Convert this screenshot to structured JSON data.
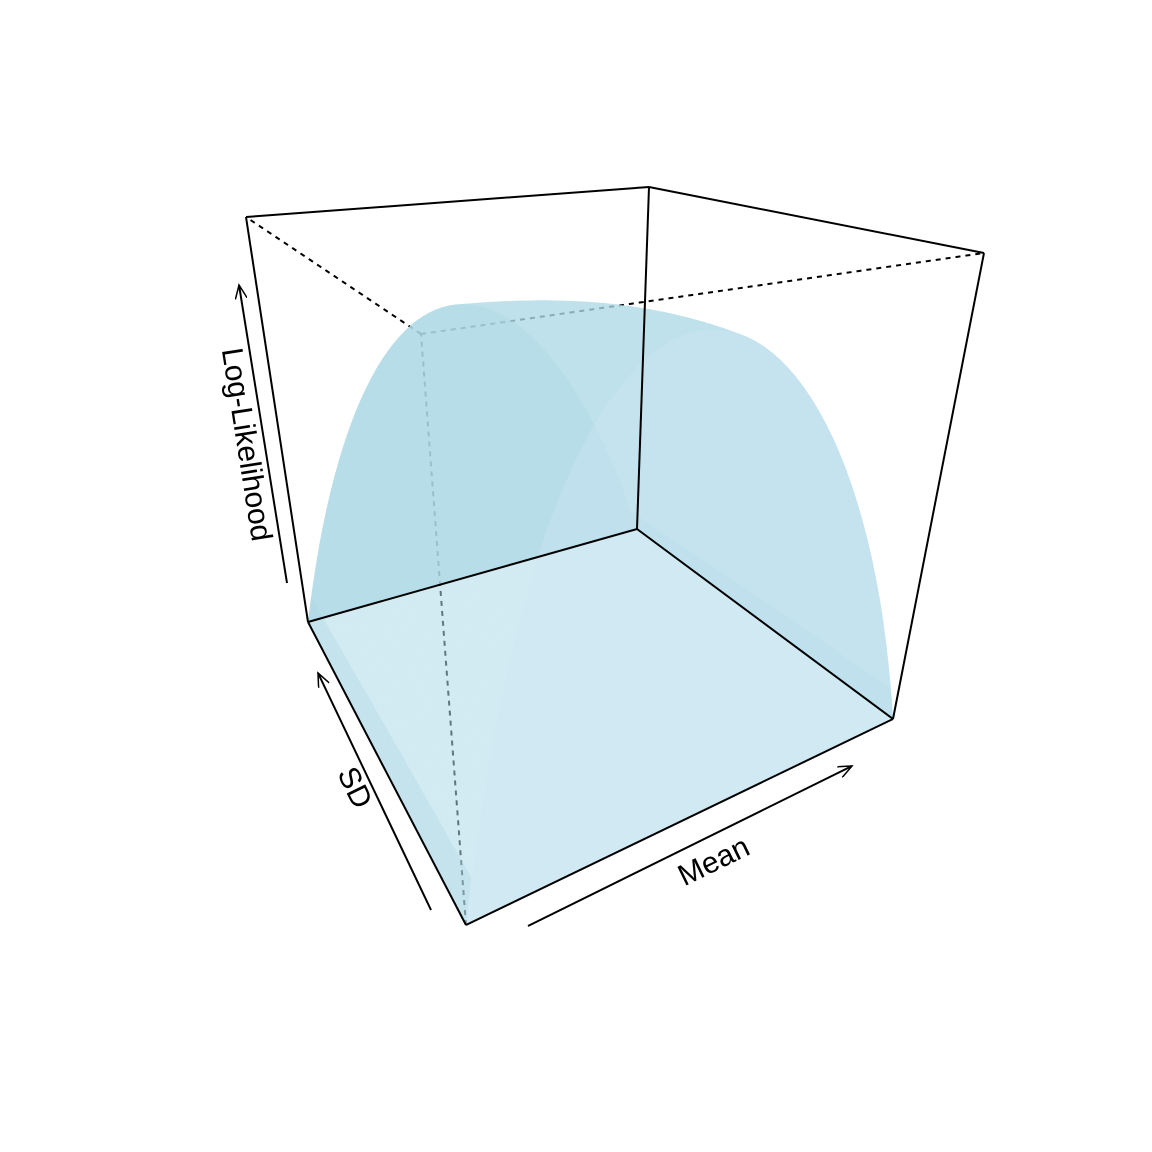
{
  "chart_data": {
    "type": "surface",
    "title": "",
    "xlabel": "Mean",
    "ylabel": "SD",
    "zlabel": "Log-Likelihood",
    "ticks": "none",
    "surface_color": "#ADD8E6",
    "box": "full"
  }
}
